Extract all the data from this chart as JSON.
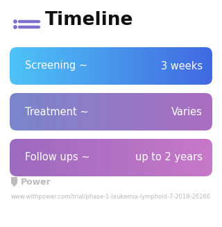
{
  "title": "Timeline",
  "background_color": "#ffffff",
  "rows": [
    {
      "label_left": "Screening ~",
      "label_right": "3 weeks",
      "gradient": [
        "#4fc3f7",
        "#4169e1"
      ]
    },
    {
      "label_left": "Treatment ~",
      "label_right": "Varies",
      "gradient": [
        "#7986cb",
        "#ab6ec0"
      ]
    },
    {
      "label_left": "Follow ups ~",
      "label_right": "up to 2 years",
      "gradient": [
        "#9c6abf",
        "#c878c8"
      ]
    }
  ],
  "footer_logo": "Power",
  "footer_url": "www.withpower.com/trial/phase-1-leukemia-lymphoid-7-2018-26266",
  "title_fontsize": 19,
  "row_label_fontsize": 10.5,
  "footer_fontsize": 6.0,
  "icon_color": "#7c6fcd",
  "footer_color": "#bbbbbb"
}
